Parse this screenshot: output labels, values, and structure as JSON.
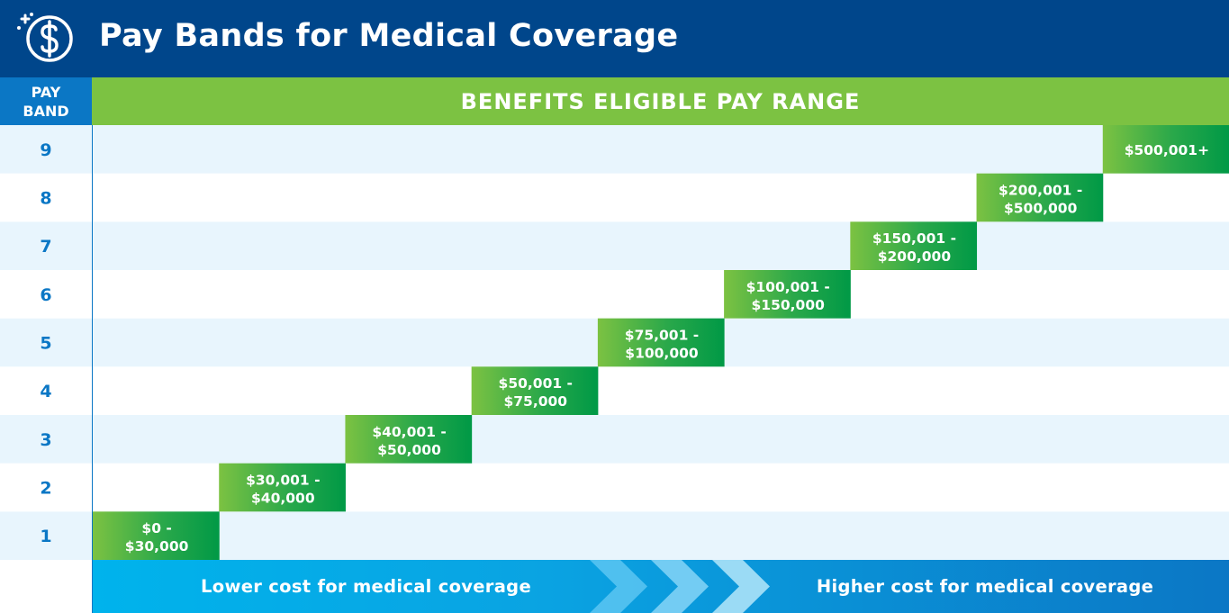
{
  "header": {
    "title": "Pay Bands for Medical Coverage",
    "icon": "dollar-coin-icon"
  },
  "column_headers": {
    "band": "PAY BAND",
    "range": "BENEFITS ELIGIBLE PAY RANGE"
  },
  "chart_data": {
    "type": "table",
    "title": "Pay Bands for Medical Coverage",
    "ylabel": "PAY BAND",
    "xlabel": "BENEFITS ELIGIBLE PAY RANGE",
    "bands": [
      {
        "band": "1",
        "range_line1": "$0 -",
        "range_line2": "$30,000"
      },
      {
        "band": "2",
        "range_line1": "$30,001 -",
        "range_line2": "$40,000"
      },
      {
        "band": "3",
        "range_line1": "$40,001 -",
        "range_line2": "$50,000"
      },
      {
        "band": "4",
        "range_line1": "$50,001 -",
        "range_line2": "$75,000"
      },
      {
        "band": "5",
        "range_line1": "$75,001 -",
        "range_line2": "$100,000"
      },
      {
        "band": "6",
        "range_line1": "$100,001 -",
        "range_line2": "$150,000"
      },
      {
        "band": "7",
        "range_line1": "$150,001 -",
        "range_line2": "$200,000"
      },
      {
        "band": "8",
        "range_line1": "$200,001 -",
        "range_line2": "$500,000"
      },
      {
        "band": "9",
        "range_line1": "$500,001+",
        "range_line2": ""
      }
    ]
  },
  "footer": {
    "left_label": "Lower cost for medical coverage",
    "right_label": "Higher cost for medical coverage",
    "arrow_icon": "chevron-right-icon"
  },
  "colors": {
    "header_bg": "#00468b",
    "band_header_bg": "#0b77c5",
    "range_header_bg": "#7cc242",
    "row_alt_bg": "#e8f5fd",
    "bar_start": "#7cc242",
    "bar_end": "#009946",
    "band_text": "#0b77c5"
  }
}
